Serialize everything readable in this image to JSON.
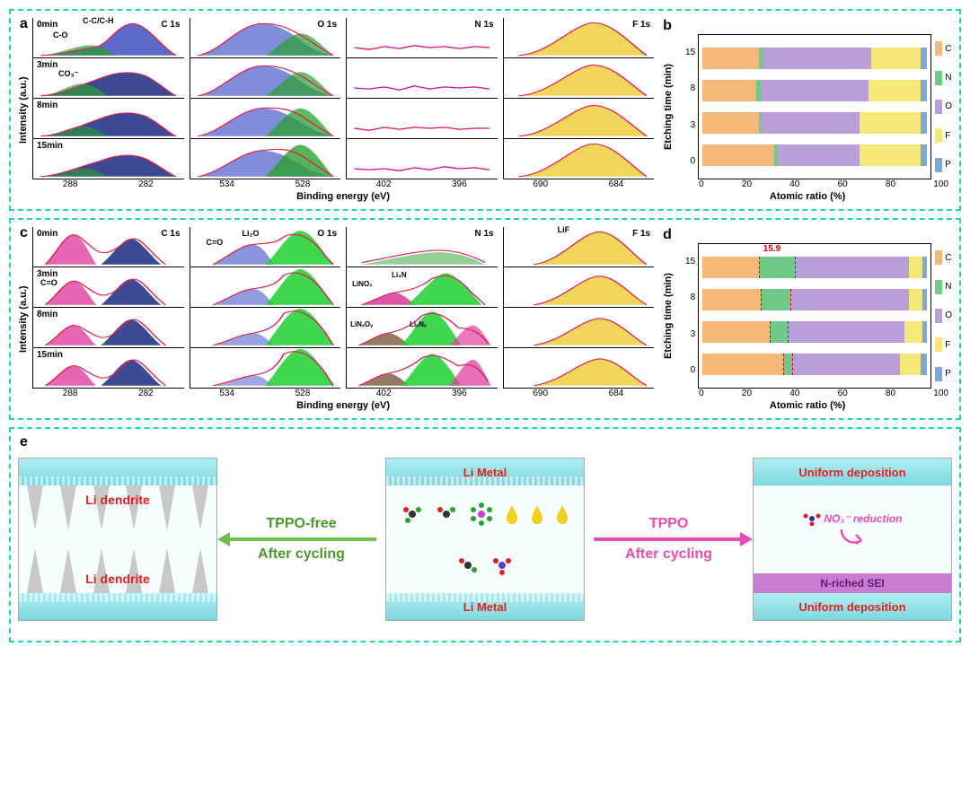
{
  "panels": {
    "a": {
      "label": "a"
    },
    "b": {
      "label": "b"
    },
    "c": {
      "label": "c"
    },
    "d": {
      "label": "d"
    },
    "e": {
      "label": "e"
    }
  },
  "spectra": {
    "y_label": "Intensity (a.u.)",
    "x_label": "Binding energy (eV)",
    "times": [
      "0min",
      "3min",
      "8min",
      "15min"
    ],
    "columns": [
      "C 1s",
      "O 1s",
      "N 1s",
      "F 1s"
    ],
    "ticks": {
      "C1s": [
        "288",
        "282"
      ],
      "O1s": [
        "534",
        "528"
      ],
      "N1s": [
        "402",
        "396"
      ],
      "F1s": [
        "690",
        "684"
      ]
    },
    "panel_a_annotations": {
      "CO": "C-O",
      "CCCH": "C-C/C-H",
      "CO3": "CO₃⁻"
    },
    "panel_c_annotations": {
      "CeqO": "C=O",
      "Li2O": "Li₂O",
      "LiNO2": "LiNO₂",
      "Li3N": "Li₃N",
      "LiNxOy": "LiNₓOᵧ",
      "LixNy": "LiₓNᵧ",
      "LiF": "LiF"
    },
    "colors": {
      "envelope": "#e02050",
      "peak_blue": "#4050c0",
      "peak_navy": "#1a2a80",
      "peak_green": "#2aa030",
      "peak_green_bright": "#1dd030",
      "peak_yellow": "#f0d040",
      "peak_pink": "#e040a0",
      "peak_magenta": "#d01080"
    }
  },
  "bars": {
    "y_label": "Etching time (min)",
    "x_label": "Atomic ratio (%)",
    "y_ticks": [
      "15",
      "8",
      "3",
      "0"
    ],
    "x_ticks": [
      "0",
      "20",
      "40",
      "60",
      "80",
      "100"
    ],
    "legend": [
      "C",
      "N",
      "O",
      "F",
      "P"
    ],
    "colors": {
      "C": "#f5b878",
      "N": "#6fc989",
      "O": "#b89fd8",
      "F": "#f5e878",
      "P": "#7da8d8"
    },
    "panel_b_data": [
      {
        "time": "15",
        "C": 25,
        "N": 2,
        "O": 48,
        "F": 22,
        "P": 3
      },
      {
        "time": "8",
        "C": 24,
        "N": 2,
        "O": 48,
        "F": 23,
        "P": 3
      },
      {
        "time": "3",
        "C": 25,
        "N": 1,
        "O": 44,
        "F": 27,
        "P": 3
      },
      {
        "time": "0",
        "C": 32,
        "N": 1,
        "O": 37,
        "F": 27,
        "P": 3
      }
    ],
    "panel_d_data": [
      {
        "time": "15",
        "C": 25,
        "N": 16,
        "O": 51,
        "F": 6,
        "P": 2
      },
      {
        "time": "8",
        "C": 26,
        "N": 13,
        "O": 53,
        "F": 6,
        "P": 2
      },
      {
        "time": "3",
        "C": 30,
        "N": 8,
        "O": 52,
        "F": 8,
        "P": 2
      },
      {
        "time": "0",
        "C": 36,
        "N": 4,
        "O": 48,
        "F": 9,
        "P": 3
      }
    ],
    "panel_d_annotation": "15.9"
  },
  "panel_e": {
    "left": {
      "label_top": "Li dendrite",
      "label_bottom": "Li dendrite"
    },
    "center": {
      "label_top": "Li Metal",
      "label_bottom": "Li Metal"
    },
    "right": {
      "label_top": "Uniform deposition",
      "label_bottom": "Uniform deposition",
      "sei": "N-riched SEI",
      "no3": "NO₃⁻ reduction"
    },
    "arrow_left": {
      "line1": "TPPO-free",
      "line2": "After cycling"
    },
    "arrow_right": {
      "line1": "TPPO",
      "line2": "After cycling"
    }
  }
}
